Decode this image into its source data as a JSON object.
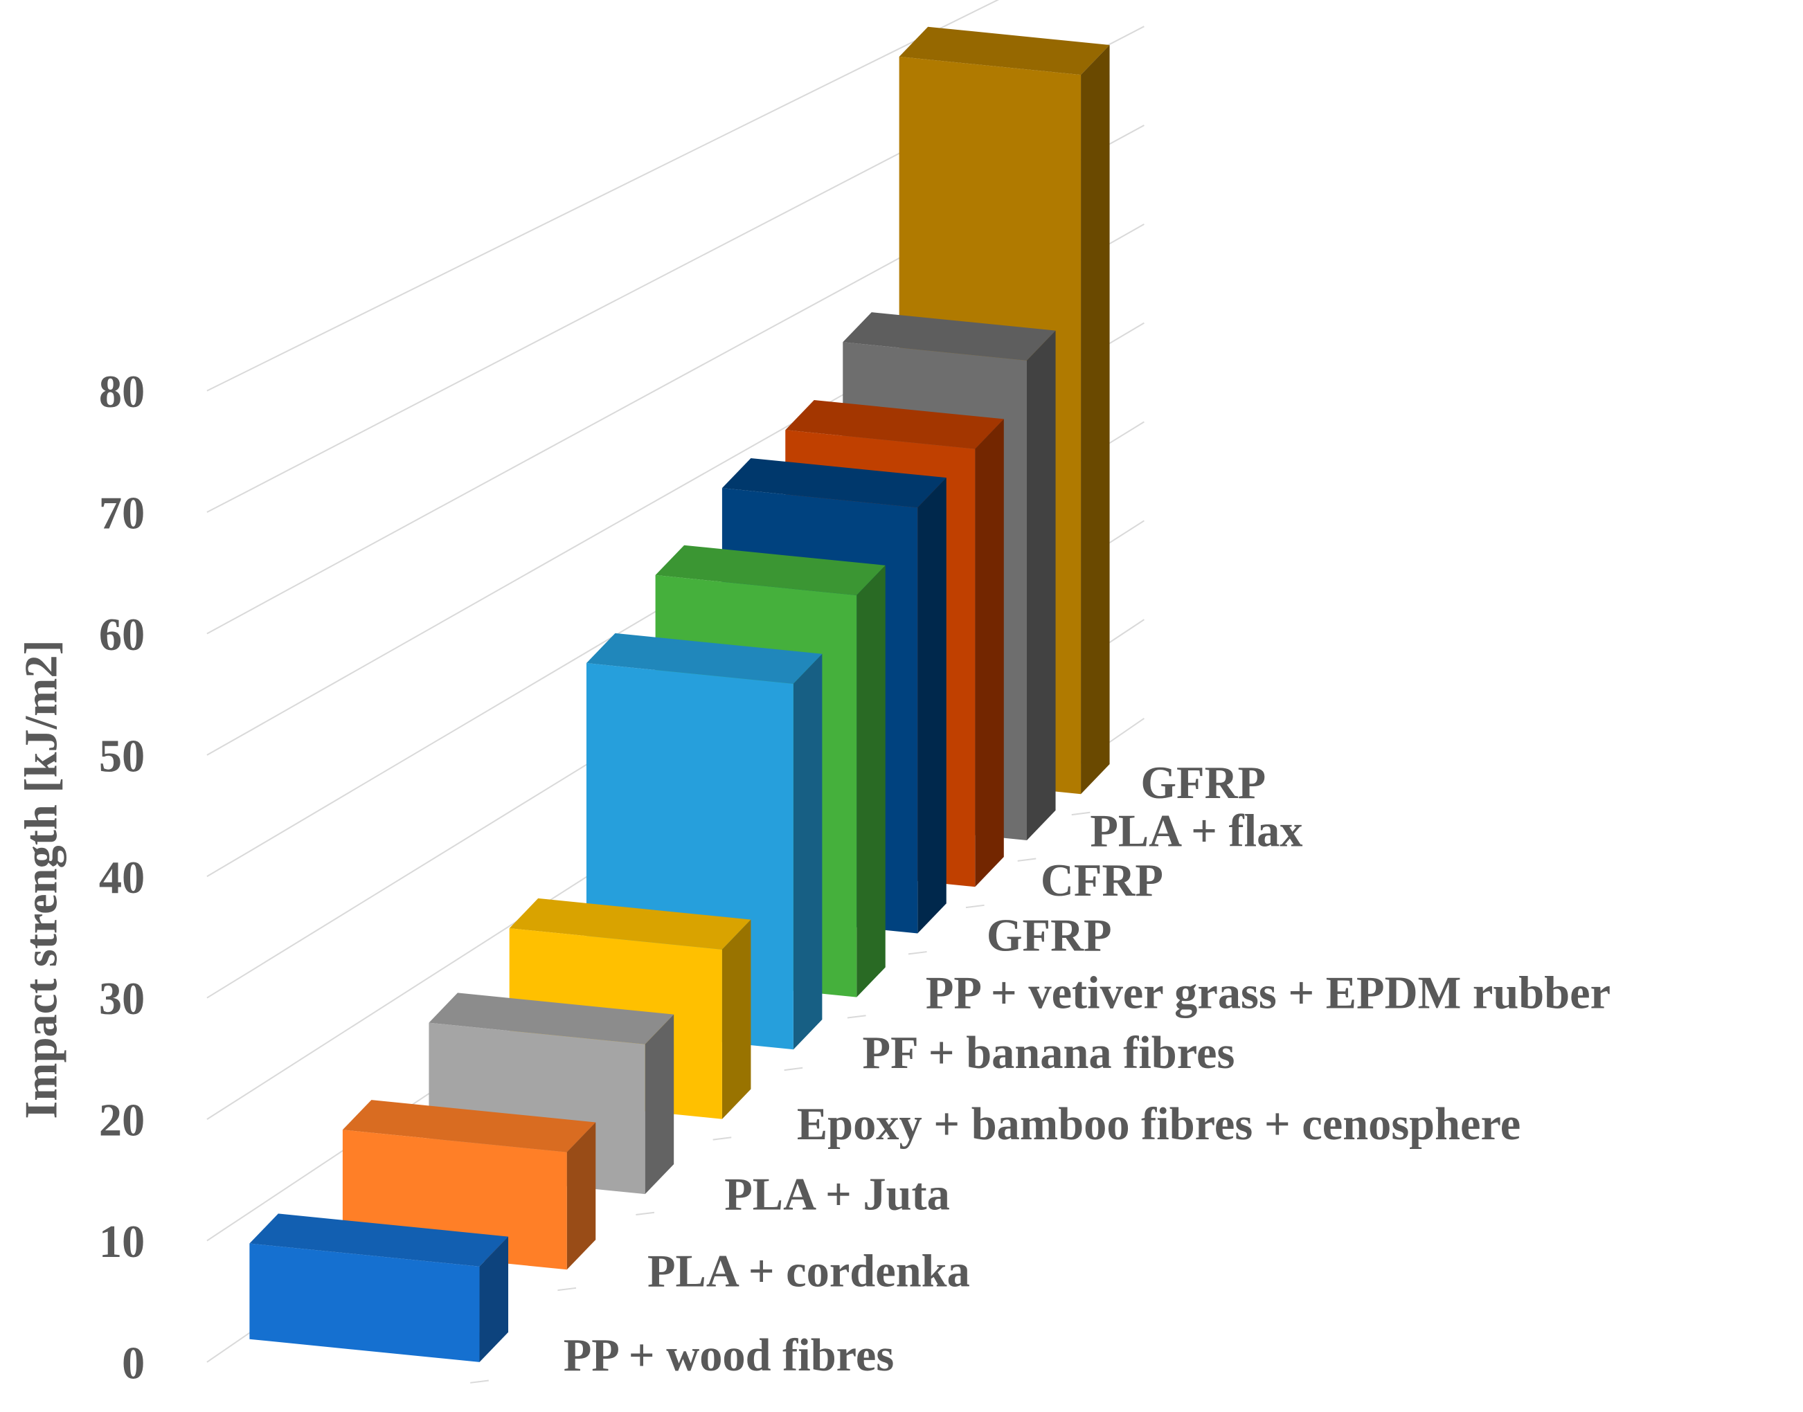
{
  "chart_data": {
    "type": "bar3d",
    "y_label": "Impact strength [kJ/m2]",
    "categories": [
      "PP + wood fibres",
      "PLA + cordenka",
      "PLA + Juta",
      "Epoxy + bamboo fibres + cenosphere",
      "PF + banana fibres",
      "PP + vetiver grass + EPDM rubber",
      "GFRP",
      "CFRP",
      "PLA + flax",
      "GFRP"
    ],
    "values": [
      8,
      10,
      13,
      15,
      33,
      37,
      40,
      42,
      47,
      72
    ],
    "colors": [
      "#1570d0",
      "#ff7f27",
      "#a5a5a5",
      "#ffc000",
      "#269fdc",
      "#45b03c",
      "#00427f",
      "#c04000",
      "#6e6e6e",
      "#b07a00"
    ],
    "ylim": [
      0,
      80
    ],
    "yticks": [
      0,
      10,
      20,
      30,
      40,
      50,
      60,
      70,
      80
    ],
    "grid": true
  }
}
